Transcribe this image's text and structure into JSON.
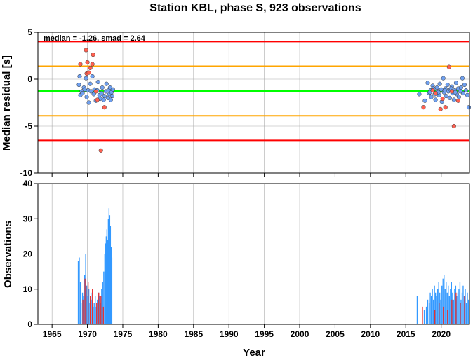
{
  "title": "Station KBL, phase S, 923 observations",
  "chart_data": [
    {
      "type": "scatter",
      "title": "Station KBL, phase S, 923 observations",
      "xlabel": "",
      "ylabel": "Median residual [s]",
      "xlim": [
        1963,
        2024
      ],
      "ylim": [
        -10,
        5
      ],
      "yticks": [
        5,
        0,
        -5,
        -10
      ],
      "annotation": "median = -1.26, smad = 2.64",
      "grid": true,
      "hlines": [
        {
          "y": 4.0,
          "color": "#ff0000"
        },
        {
          "y": 1.38,
          "color": "#ffa500"
        },
        {
          "y": -1.26,
          "color": "#00ff00"
        },
        {
          "y": -3.9,
          "color": "#ffa500"
        },
        {
          "y": -6.52,
          "color": "#ff0000"
        }
      ],
      "series": [
        {
          "color": "#6fa0f0",
          "points": [
            [
              1968.8,
              -0.6
            ],
            [
              1969.0,
              -1.7
            ],
            [
              1969.2,
              -1.3
            ],
            [
              1969.5,
              -0.9
            ],
            [
              1969.6,
              -1.1
            ],
            [
              1969.8,
              0.1
            ],
            [
              1969.9,
              -1.9
            ],
            [
              1970.1,
              -1.2
            ],
            [
              1970.2,
              -2.5
            ],
            [
              1970.4,
              -0.5
            ],
            [
              1970.5,
              -1.3
            ],
            [
              1970.7,
              0.3
            ],
            [
              1970.9,
              -1.6
            ],
            [
              1971.0,
              -1.1
            ],
            [
              1971.2,
              -2.3
            ],
            [
              1971.4,
              -1.2
            ],
            [
              1971.5,
              -0.3
            ],
            [
              1971.7,
              -1.7
            ],
            [
              1971.8,
              -2.1
            ],
            [
              1972.0,
              -1.5
            ],
            [
              1972.1,
              -0.9
            ],
            [
              1972.3,
              -2.2
            ],
            [
              1972.4,
              -1.8
            ],
            [
              1972.6,
              -1.3
            ],
            [
              1972.7,
              -0.5
            ],
            [
              1972.9,
              -2.0
            ],
            [
              1973.0,
              -1.2
            ],
            [
              1973.1,
              -1.6
            ],
            [
              1973.2,
              -0.9
            ],
            [
              1973.3,
              -2.2
            ],
            [
              1973.4,
              -1.4
            ],
            [
              1973.5,
              -1.8
            ],
            [
              1973.6,
              -1.1
            ],
            [
              1968.9,
              0.3
            ],
            [
              1969.3,
              -1.5
            ],
            [
              2016.9,
              -1.6
            ],
            [
              2017.7,
              -2.3
            ],
            [
              2018.1,
              -0.4
            ],
            [
              2018.3,
              -1.5
            ],
            [
              2018.5,
              -1.2
            ],
            [
              2018.6,
              -1.9
            ],
            [
              2018.8,
              -0.7
            ],
            [
              2018.9,
              -1.0
            ],
            [
              2019.1,
              -1.6
            ],
            [
              2019.2,
              -2.2
            ],
            [
              2019.4,
              -0.9
            ],
            [
              2019.5,
              -1.3
            ],
            [
              2019.7,
              -1.7
            ],
            [
              2019.8,
              -0.5
            ],
            [
              2020.0,
              -1.1
            ],
            [
              2020.1,
              -2.4
            ],
            [
              2020.3,
              0.1
            ],
            [
              2020.4,
              -1.4
            ],
            [
              2020.6,
              -1.0
            ],
            [
              2020.7,
              -1.8
            ],
            [
              2020.9,
              -0.6
            ],
            [
              2021.0,
              -1.3
            ],
            [
              2021.2,
              -2.0
            ],
            [
              2021.3,
              -1.1
            ],
            [
              2021.5,
              -0.8
            ],
            [
              2021.6,
              -1.5
            ],
            [
              2021.8,
              -2.2
            ],
            [
              2021.9,
              -1.2
            ],
            [
              2022.1,
              -0.4
            ],
            [
              2022.2,
              -1.6
            ],
            [
              2022.4,
              -1.0
            ],
            [
              2022.5,
              -1.9
            ],
            [
              2022.7,
              -1.3
            ],
            [
              2022.8,
              -0.9
            ],
            [
              2023.0,
              0.1
            ],
            [
              2023.1,
              -1.5
            ],
            [
              2023.3,
              -0.6
            ],
            [
              2023.5,
              -1.2
            ],
            [
              2023.7,
              -1.7
            ],
            [
              2023.9,
              -3.0
            ],
            [
              2019.6,
              -1.4
            ],
            [
              2020.5,
              -1.2
            ],
            [
              2021.4,
              -1.0
            ],
            [
              2022.0,
              -1.4
            ],
            [
              2018.4,
              -1.4
            ]
          ]
        },
        {
          "color": "#ff6050",
          "points": [
            [
              1969.0,
              1.6
            ],
            [
              1969.8,
              3.1
            ],
            [
              1969.9,
              0.6
            ],
            [
              1970.0,
              1.8
            ],
            [
              1970.2,
              0.7
            ],
            [
              1970.4,
              1.2
            ],
            [
              1970.7,
              1.6
            ],
            [
              1970.8,
              2.6
            ],
            [
              1971.2,
              -1.3
            ],
            [
              1971.4,
              -2.2
            ],
            [
              1971.9,
              -7.6
            ],
            [
              1972.4,
              -3.0
            ],
            [
              2017.5,
              -3.0
            ],
            [
              2018.8,
              -1.2
            ],
            [
              2019.2,
              -1.5
            ],
            [
              2019.9,
              -3.2
            ],
            [
              2020.2,
              -2.1
            ],
            [
              2020.6,
              -3.0
            ],
            [
              2021.1,
              1.3
            ],
            [
              2021.5,
              -1.3
            ],
            [
              2021.8,
              -5.0
            ],
            [
              2022.4,
              -2.3
            ]
          ]
        }
      ]
    },
    {
      "type": "bar",
      "title": "",
      "xlabel": "Year",
      "ylabel": "Observations",
      "xlim": [
        1963,
        2024
      ],
      "ylim": [
        0,
        40
      ],
      "yticks": [
        40,
        30,
        20,
        10,
        0
      ],
      "xticks": [
        1965,
        1970,
        1975,
        1980,
        1985,
        1990,
        1995,
        2000,
        2005,
        2010,
        2015,
        2020
      ],
      "grid": true,
      "series": [
        {
          "color": "#3399ff",
          "bars": [
            [
              1968.7,
              18
            ],
            [
              1968.85,
              19
            ],
            [
              1969.0,
              12
            ],
            [
              1969.1,
              6
            ],
            [
              1969.3,
              9
            ],
            [
              1969.45,
              8
            ],
            [
              1969.6,
              14
            ],
            [
              1969.75,
              20
            ],
            [
              1969.9,
              11
            ],
            [
              1970.05,
              8
            ],
            [
              1970.2,
              10
            ],
            [
              1970.35,
              6
            ],
            [
              1970.5,
              9
            ],
            [
              1970.65,
              7
            ],
            [
              1970.8,
              5
            ],
            [
              1970.95,
              6
            ],
            [
              1971.1,
              8
            ],
            [
              1971.25,
              5
            ],
            [
              1971.4,
              7
            ],
            [
              1971.55,
              9
            ],
            [
              1971.7,
              8
            ],
            [
              1971.85,
              6
            ],
            [
              1972.0,
              10
            ],
            [
              1972.15,
              12
            ],
            [
              1972.3,
              15
            ],
            [
              1972.45,
              20
            ],
            [
              1972.55,
              23
            ],
            [
              1972.65,
              25
            ],
            [
              1972.75,
              27
            ],
            [
              1972.85,
              24
            ],
            [
              1972.95,
              30
            ],
            [
              1973.05,
              33
            ],
            [
              1973.15,
              31
            ],
            [
              1973.25,
              28
            ],
            [
              1973.35,
              22
            ],
            [
              1973.45,
              19
            ],
            [
              2016.6,
              8
            ],
            [
              2017.6,
              4
            ],
            [
              2017.9,
              5
            ],
            [
              2018.1,
              7
            ],
            [
              2018.3,
              6
            ],
            [
              2018.45,
              9
            ],
            [
              2018.6,
              8
            ],
            [
              2018.75,
              10
            ],
            [
              2018.9,
              7
            ],
            [
              2019.05,
              11
            ],
            [
              2019.2,
              9
            ],
            [
              2019.35,
              8
            ],
            [
              2019.5,
              10
            ],
            [
              2019.65,
              12
            ],
            [
              2019.8,
              9
            ],
            [
              2019.95,
              7
            ],
            [
              2020.1,
              11
            ],
            [
              2020.25,
              13
            ],
            [
              2020.4,
              14
            ],
            [
              2020.55,
              10
            ],
            [
              2020.7,
              12
            ],
            [
              2020.85,
              9
            ],
            [
              2021.0,
              11
            ],
            [
              2021.15,
              8
            ],
            [
              2021.3,
              10
            ],
            [
              2021.45,
              12
            ],
            [
              2021.6,
              9
            ],
            [
              2021.75,
              7
            ],
            [
              2021.9,
              10
            ],
            [
              2022.05,
              11
            ],
            [
              2022.2,
              8
            ],
            [
              2022.35,
              9
            ],
            [
              2022.5,
              10
            ],
            [
              2022.65,
              12
            ],
            [
              2022.8,
              7
            ],
            [
              2022.95,
              9
            ],
            [
              2023.1,
              11
            ],
            [
              2023.25,
              8
            ],
            [
              2023.4,
              10
            ],
            [
              2023.55,
              6
            ],
            [
              2023.7,
              9
            ],
            [
              2023.85,
              7
            ]
          ]
        },
        {
          "color": "#e83030",
          "bars": [
            [
              1969.35,
              7
            ],
            [
              1969.65,
              13
            ],
            [
              1969.8,
              11
            ],
            [
              1970.1,
              12
            ],
            [
              1970.4,
              8
            ],
            [
              1970.7,
              10
            ],
            [
              1971.3,
              6
            ],
            [
              1971.6,
              9
            ],
            [
              1971.9,
              8
            ],
            [
              1972.25,
              5
            ],
            [
              2017.35,
              5
            ],
            [
              2019.1,
              4
            ],
            [
              2019.7,
              6
            ],
            [
              2020.3,
              5
            ],
            [
              2020.9,
              4
            ],
            [
              2021.5,
              7
            ],
            [
              2022.1,
              9
            ],
            [
              2022.7,
              6
            ],
            [
              2023.3,
              8
            ]
          ]
        }
      ]
    }
  ]
}
